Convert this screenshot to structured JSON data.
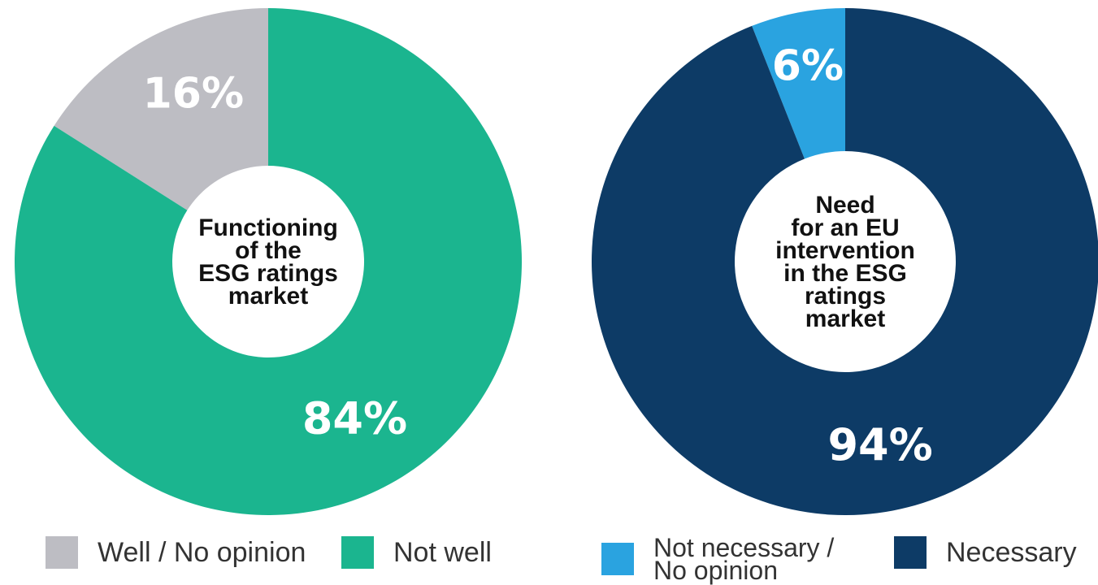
{
  "chart_data": [
    {
      "type": "pie",
      "title": "Functioning of the ESG ratings market",
      "title_lines": [
        "Functioning",
        "of the",
        "ESG ratings",
        "market"
      ],
      "slices": [
        {
          "label": "Well / No opinion",
          "value": 16,
          "display": "16%",
          "color": "#bdbdc3"
        },
        {
          "label": "Not well",
          "value": 84,
          "display": "84%",
          "color": "#1bb58f"
        }
      ],
      "legend": [
        "Well / No opinion",
        "Not well"
      ],
      "legend_placement": "bottom"
    },
    {
      "type": "pie",
      "title": "Need for an EU intervention in the ESG ratings market",
      "title_lines": [
        "Need",
        "for an EU",
        "intervention",
        "in the ESG",
        "ratings",
        "market"
      ],
      "slices": [
        {
          "label": "Not necessary / No opinion",
          "value": 6,
          "display": "6%",
          "color": "#2aa3e0"
        },
        {
          "label": "Necessary",
          "value": 94,
          "display": "94%",
          "color": "#0d3b66"
        }
      ],
      "legend": [
        "Not necessary / No opinion",
        "Necessary"
      ],
      "legend_lines": [
        [
          "Not necessary /",
          "No opinion"
        ],
        [
          "Necessary"
        ]
      ],
      "legend_placement": "bottom"
    }
  ]
}
